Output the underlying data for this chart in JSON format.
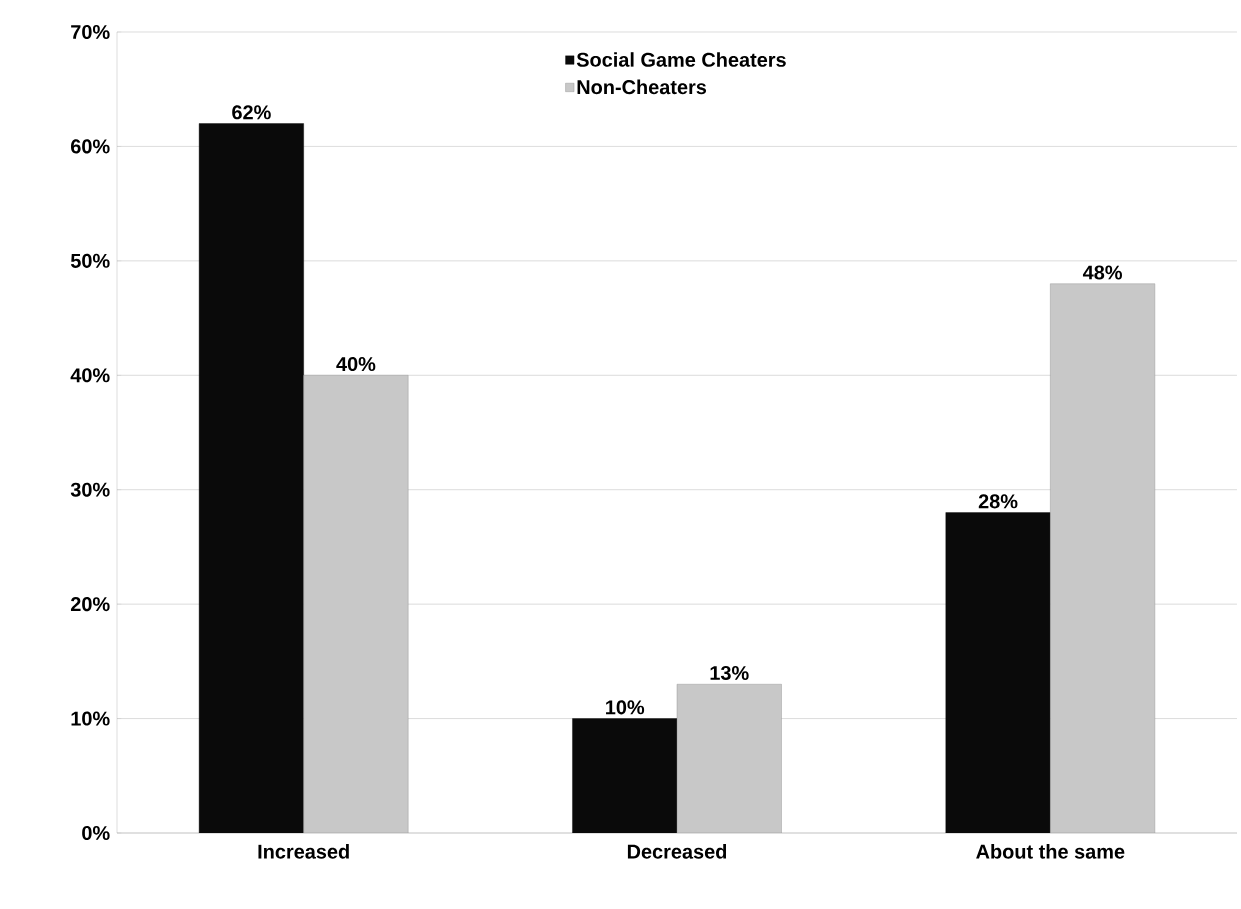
{
  "chart_data": {
    "type": "bar",
    "categories": [
      "Increased",
      "Decreased",
      "About the same"
    ],
    "series": [
      {
        "name": "Social Game Cheaters",
        "color": "#0a0a0a",
        "values": [
          62,
          10,
          28
        ],
        "value_labels": [
          "62%",
          "10%",
          "28%"
        ]
      },
      {
        "name": "Non-Cheaters",
        "color": "#c8c8c8",
        "values": [
          40,
          13,
          48
        ],
        "value_labels": [
          "40%",
          "13%",
          "48%"
        ]
      }
    ],
    "ylim": [
      0,
      70
    ],
    "yticks": [
      {
        "value": 0,
        "label": "0%"
      },
      {
        "value": 10,
        "label": "10%"
      },
      {
        "value": 20,
        "label": "20%"
      },
      {
        "value": 30,
        "label": "30%"
      },
      {
        "value": 40,
        "label": "40%"
      },
      {
        "value": 50,
        "label": "50%"
      },
      {
        "value": 60,
        "label": "60%"
      },
      {
        "value": 70,
        "label": "70%"
      }
    ],
    "grid": "y",
    "legend": "top"
  }
}
